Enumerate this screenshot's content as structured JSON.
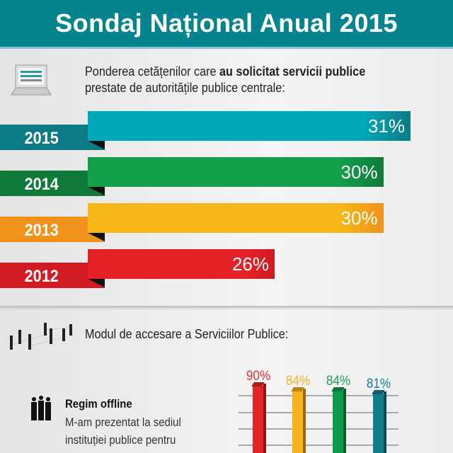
{
  "header": {
    "title": "Sondaj Național Anual 2015"
  },
  "section1": {
    "intro_normal": "Ponderea cetățenilor care ",
    "intro_bold": "au solicitat servicii publice",
    "intro_line2": "prestate de autoritățile publice centrale:",
    "icon": "laptop-icon"
  },
  "chart_data": [
    {
      "type": "bar",
      "orientation": "horizontal",
      "title": "Ponderea cetățenilor care au solicitat servicii publice prestate de autoritățile publice centrale:",
      "categories": [
        "2015",
        "2014",
        "2013",
        "2012"
      ],
      "values": [
        31,
        30,
        30,
        26
      ],
      "labels": [
        "31%",
        "30%",
        "30%",
        "26%"
      ],
      "colors": [
        "#00a9b8",
        "#14a04a",
        "#f7b716",
        "#e32126"
      ],
      "tab_colors": [
        "#0c7b86",
        "#0f7a3a",
        "#f0921c",
        "#d11a22"
      ]
    },
    {
      "type": "bar",
      "orientation": "vertical",
      "title": "Modul de accesare a Serviciilor Publice:",
      "values": [
        90,
        84,
        84,
        81
      ],
      "labels": [
        "90%",
        "84%",
        "84%",
        "81%"
      ],
      "colors": [
        "#e52629",
        "#f6b21a",
        "#0e9a4b",
        "#0e7e8a"
      ],
      "label_colors": [
        "#e0323a",
        "#f2b428",
        "#21a05a",
        "#1a7e9a"
      ],
      "grid": true
    }
  ],
  "section2": {
    "title": "Modul de accesare a Serviciilor Publice:",
    "icon": "people-network-icon"
  },
  "offline": {
    "title": "Regim offline",
    "lines": [
      "M-am prezentat la sediul",
      "instituției publice pentru"
    ],
    "icon": "group-people-icon"
  }
}
